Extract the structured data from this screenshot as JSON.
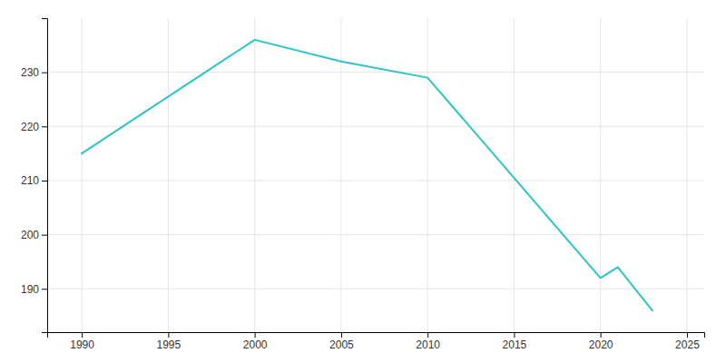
{
  "chart_data": {
    "type": "line",
    "x": [
      1990,
      2000,
      2005,
      2010,
      2020,
      2021,
      2022,
      2023
    ],
    "values": [
      215,
      236,
      232,
      229,
      192,
      194,
      190,
      186
    ],
    "color": "#2EC4C4",
    "xlim": [
      1988,
      2026
    ],
    "ylim": [
      182,
      240
    ],
    "xticks": [
      1990,
      1995,
      2000,
      2005,
      2010,
      2015,
      2020,
      2025
    ],
    "yticks": [
      190,
      200,
      210,
      220,
      230
    ],
    "grid": true
  }
}
